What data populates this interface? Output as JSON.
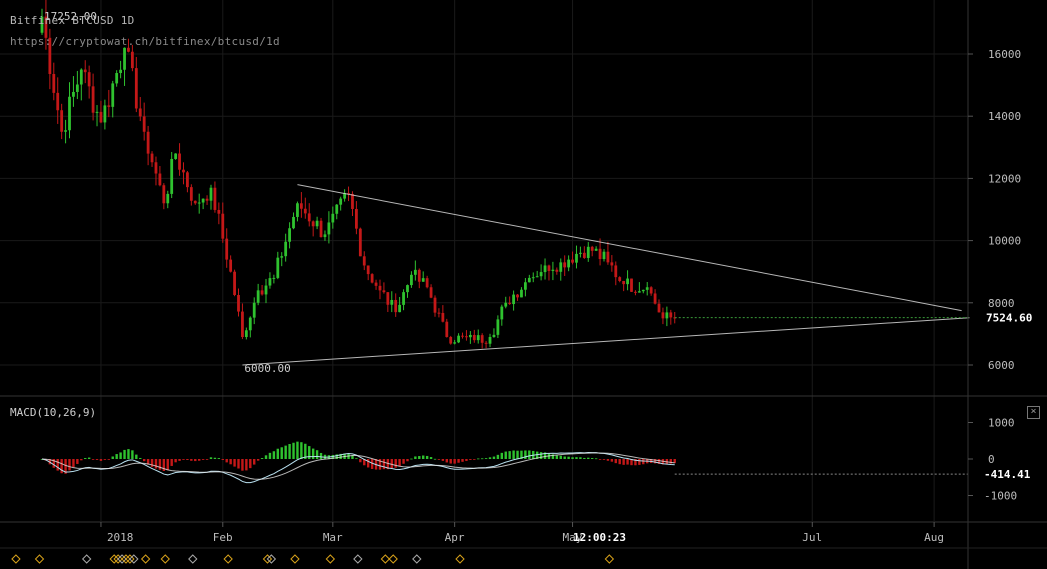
{
  "header": {
    "title": "Bitfinex BTCUSD 1D",
    "url": "https://cryptowat.ch/bitfinex/btcusd/1d",
    "top_label": "17252.00"
  },
  "colors": {
    "background": "#000000",
    "up": "#2fc22f",
    "down": "#c41818",
    "trendline": "#d8d8d8",
    "macd_line": "#b9e1f0",
    "signal_line": "#e6e6e6",
    "grid": "#1a1a1a"
  },
  "chart_data": [
    {
      "type": "candlestick",
      "title": "Bitfinex BTCUSD 1D",
      "ylim": [
        5200,
        17600
      ],
      "y_ticks": [
        6000,
        8000,
        10000,
        12000,
        14000,
        16000
      ],
      "x_ticks": [
        "2018",
        "Feb",
        "Mar",
        "Apr",
        "May",
        "Jul",
        "Aug"
      ],
      "x_ticks_dates": [
        "2018-01-01",
        "2018-02-01",
        "2018-03-01",
        "2018-04-01",
        "2018-05-01",
        "2018-07-01",
        "2018-08-01"
      ],
      "current_time_label": "12:00:23",
      "last_price": 7524.6,
      "last_price_label": "7524.60",
      "annotations": [
        {
          "text": "17252.00",
          "date": "2017-12-17",
          "price": 17252
        },
        {
          "text": "6000.00",
          "date": "2018-02-06",
          "price": 6000
        }
      ],
      "trendlines": [
        {
          "from": {
            "date": "2018-02-20",
            "price": 11800
          },
          "to": {
            "date": "2018-08-08",
            "price": 7750
          }
        },
        {
          "from": {
            "date": "2018-02-06",
            "price": 6000
          },
          "to": {
            "date": "2018-08-10",
            "price": 7520
          }
        }
      ],
      "price_anchors": [
        {
          "date": "2017-12-17",
          "close": 17200
        },
        {
          "date": "2017-12-22",
          "close": 13500
        },
        {
          "date": "2017-12-27",
          "close": 15500
        },
        {
          "date": "2018-01-01",
          "close": 13800
        },
        {
          "date": "2018-01-07",
          "close": 16200
        },
        {
          "date": "2018-01-12",
          "close": 13500
        },
        {
          "date": "2018-01-17",
          "close": 11200
        },
        {
          "date": "2018-01-20",
          "close": 12800
        },
        {
          "date": "2018-01-25",
          "close": 11200
        },
        {
          "date": "2018-01-29",
          "close": 11700
        },
        {
          "date": "2018-02-03",
          "close": 9000
        },
        {
          "date": "2018-02-06",
          "close": 6900
        },
        {
          "date": "2018-02-10",
          "close": 8400
        },
        {
          "date": "2018-02-14",
          "close": 8800
        },
        {
          "date": "2018-02-20",
          "close": 11200
        },
        {
          "date": "2018-02-27",
          "close": 10200
        },
        {
          "date": "2018-03-05",
          "close": 11500
        },
        {
          "date": "2018-03-09",
          "close": 9200
        },
        {
          "date": "2018-03-13",
          "close": 8400
        },
        {
          "date": "2018-03-17",
          "close": 7700
        },
        {
          "date": "2018-03-21",
          "close": 8900
        },
        {
          "date": "2018-03-25",
          "close": 8500
        },
        {
          "date": "2018-03-30",
          "close": 6900
        },
        {
          "date": "2018-04-06",
          "close": 6800
        },
        {
          "date": "2018-04-10",
          "close": 6900
        },
        {
          "date": "2018-04-14",
          "close": 8000
        },
        {
          "date": "2018-04-20",
          "close": 8800
        },
        {
          "date": "2018-04-24",
          "close": 9200
        },
        {
          "date": "2018-04-28",
          "close": 9300
        },
        {
          "date": "2018-05-05",
          "close": 9800
        },
        {
          "date": "2018-05-10",
          "close": 9300
        },
        {
          "date": "2018-05-14",
          "close": 8600
        },
        {
          "date": "2018-05-20",
          "close": 8500
        },
        {
          "date": "2018-05-24",
          "close": 7500
        },
        {
          "date": "2018-05-27",
          "close": 7524.6
        }
      ]
    },
    {
      "type": "macd",
      "title": "MACD(10,26,9)",
      "ylim": [
        -1700,
        1800
      ],
      "y_ticks": [
        -1000,
        0,
        1000
      ],
      "last_value": -414.41,
      "last_value_label": "-414.41"
    }
  ]
}
